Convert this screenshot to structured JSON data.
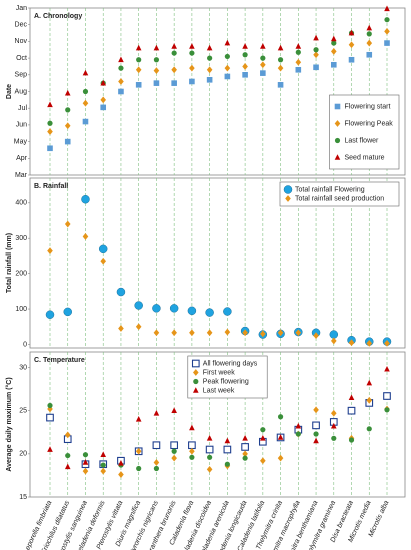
{
  "chart_data": [
    {
      "type": "scatter",
      "title": "A. Chronology",
      "ylabel": "Date",
      "legend": "lower right",
      "ylim": [
        3,
        13
      ],
      "yticks": [
        {
          "value": 3,
          "label": "Mar"
        },
        {
          "value": 4,
          "label": "Apr"
        },
        {
          "value": 5,
          "label": "May"
        },
        {
          "value": 6,
          "label": "Jun"
        },
        {
          "value": 7,
          "label": "Jul"
        },
        {
          "value": 8,
          "label": "Aug"
        },
        {
          "value": 9,
          "label": "Sep"
        },
        {
          "value": 10,
          "label": "Oct"
        },
        {
          "value": 11,
          "label": "Nov"
        },
        {
          "value": 12,
          "label": "Dec"
        },
        {
          "value": 13,
          "label": "Jan"
        }
      ],
      "series": [
        {
          "name": "Flowering start",
          "color": "#5b9bd5",
          "marker": "square",
          "values": [
            4.6,
            5.0,
            6.2,
            7.05,
            8.0,
            8.4,
            8.5,
            8.5,
            8.6,
            8.7,
            8.9,
            9.0,
            9.1,
            8.4,
            9.3,
            9.45,
            9.6,
            9.9,
            10.2,
            10.9
          ]
        },
        {
          "name": "Flowering Peak",
          "color": "#e69519",
          "marker": "diamond",
          "values": [
            5.6,
            5.95,
            7.3,
            7.5,
            8.6,
            9.3,
            9.25,
            9.3,
            9.4,
            9.3,
            9.4,
            9.5,
            9.6,
            9.4,
            9.75,
            10.2,
            10.4,
            10.8,
            10.9,
            11.6
          ]
        },
        {
          "name": "Last flower",
          "color": "#3a8f3a",
          "marker": "circle",
          "values": [
            6.1,
            6.9,
            8.0,
            8.5,
            9.4,
            9.9,
            9.9,
            10.3,
            10.3,
            10.0,
            10.1,
            10.2,
            10.0,
            9.9,
            10.35,
            10.5,
            10.9,
            11.5,
            11.45,
            12.3
          ]
        },
        {
          "name": "Seed mature",
          "color": "#c00000",
          "marker": "triangle",
          "values": [
            7.2,
            7.9,
            9.1,
            8.5,
            9.9,
            10.6,
            10.6,
            10.7,
            10.7,
            10.6,
            10.9,
            10.7,
            10.7,
            10.6,
            10.7,
            11.2,
            11.15,
            11.5,
            11.8,
            12.95
          ]
        }
      ]
    },
    {
      "type": "scatter",
      "title": "B. Rainfall",
      "ylabel": "Total rainfall (mm)",
      "legend": "upper right",
      "ylim": [
        -10,
        470
      ],
      "yticks": [
        0,
        100,
        200,
        300,
        400
      ],
      "series": [
        {
          "name": "Total rainfall Flowering",
          "color": "#1fa3e0",
          "marker": "circle",
          "values": [
            84,
            92,
            410,
            270,
            148,
            110,
            102,
            102,
            95,
            90,
            93,
            38,
            28,
            30,
            35,
            33,
            28,
            12,
            8,
            8
          ]
        },
        {
          "name": "Total rainfall seed production",
          "color": "#e69519",
          "marker": "diamond",
          "values": [
            265,
            340,
            305,
            235,
            45,
            50,
            33,
            33,
            33,
            33,
            35,
            33,
            30,
            33,
            33,
            25,
            10,
            5,
            3,
            3
          ]
        }
      ]
    },
    {
      "type": "scatter",
      "title": "C. Temperature",
      "ylabel": "Average daily maximum (°C)",
      "legend": "upper center",
      "ylim": [
        15,
        31.8
      ],
      "yticks": [
        15,
        20,
        25,
        30
      ],
      "categories": [
        "Leporella fimbriata",
        "Eriochilus dilatatus",
        "Pterostylis sanguinea",
        "Pheladenia deformis",
        "Pterostylis vittata",
        "Diuris magnifica",
        "Pyrorchis nigricans",
        "Elythranthera brunonis",
        "Caladenia flava",
        "Caladenia discoidea",
        "Caladenia arenicola",
        "Caladenia longicauda",
        "Caladenia latifolia",
        "Thelymitra crinita",
        "Thelymitra macrophylla",
        "Thelymitra benthamiana",
        "Thelymitra graminea",
        "Disa bracteata",
        "Microtis media",
        "Microtis alba"
      ],
      "series": [
        {
          "name": "All flowering days",
          "color": "#1f3f8f",
          "marker": "open-square",
          "values": [
            24.2,
            21.7,
            18.8,
            18.8,
            19.2,
            20.3,
            21.0,
            21.0,
            21.0,
            20.5,
            20.5,
            20.8,
            21.4,
            21.9,
            22.8,
            23.3,
            23.7,
            25.0,
            25.9,
            26.7
          ]
        },
        {
          "name": "First week",
          "color": "#e69519",
          "marker": "diamond",
          "values": [
            25.2,
            22.2,
            18.0,
            18.0,
            17.6,
            20.3,
            19.0,
            19.5,
            20.3,
            18.2,
            18.6,
            20.0,
            19.2,
            19.5,
            22.3,
            25.1,
            24.7,
            21.8,
            26.2,
            25.2
          ]
        },
        {
          "name": "Peak flowering",
          "color": "#3a8f3a",
          "marker": "circle",
          "values": [
            25.6,
            19.8,
            19.9,
            18.7,
            18.7,
            18.3,
            18.3,
            20.3,
            19.6,
            19.6,
            18.8,
            19.5,
            22.8,
            24.3,
            22.3,
            22.3,
            21.8,
            21.6,
            22.9,
            25.1
          ]
        },
        {
          "name": "Last week",
          "color": "#c00000",
          "marker": "triangle",
          "values": [
            20.5,
            18.5,
            19.0,
            19.9,
            18.9,
            24.0,
            24.7,
            25.0,
            23.0,
            21.8,
            21.5,
            21.8,
            21.8,
            21.9,
            23.2,
            21.5,
            23.2,
            26.5,
            28.2,
            29.8
          ]
        }
      ]
    }
  ]
}
